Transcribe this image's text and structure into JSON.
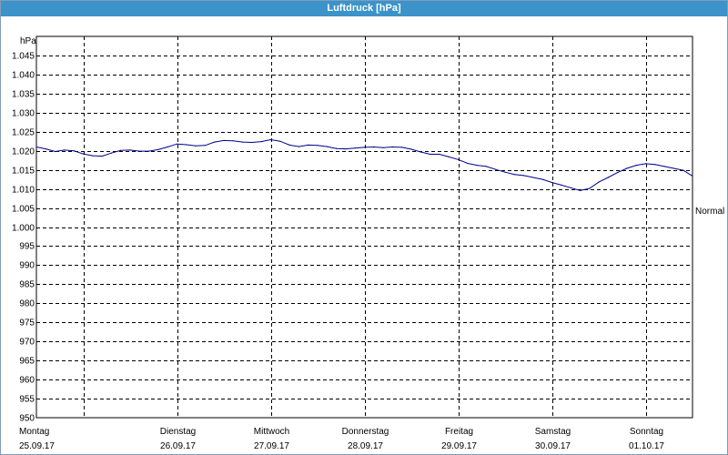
{
  "window": {
    "title": "Luftdruck [hPa]"
  },
  "chart_data": {
    "type": "line",
    "title": "Luftdruck [hPa]",
    "ylabel": "hPa",
    "xlabel": "",
    "ylim": [
      950,
      1050
    ],
    "xlim": [
      0,
      7
    ],
    "grid": true,
    "y_ticks": [
      950,
      955,
      960,
      965,
      970,
      975,
      980,
      985,
      990,
      995,
      1000,
      1005,
      1010,
      1015,
      1020,
      1025,
      1030,
      1035,
      1040,
      1045
    ],
    "y_tick_labels": [
      "950",
      "955",
      "960",
      "965",
      "970",
      "975",
      "980",
      "985",
      "990",
      "995",
      "1.000",
      "1.005",
      "1.010",
      "1.015",
      "1.020",
      "1.025",
      "1.030",
      "1.035",
      "1.040",
      "1.045"
    ],
    "x_ticks": [
      {
        "day": "Montag",
        "date": "25.09.17"
      },
      {
        "day": "Dienstag",
        "date": "26.09.17"
      },
      {
        "day": "Mittwoch",
        "date": "27.09.17"
      },
      {
        "day": "Donnerstag",
        "date": "28.09.17"
      },
      {
        "day": "Freitag",
        "date": "29.09.17"
      },
      {
        "day": "Samstag",
        "date": "30.09.17"
      },
      {
        "day": "Sonntag",
        "date": "01.10.17"
      }
    ],
    "reference_line": {
      "label": "Normal",
      "value": 1005
    },
    "series": [
      {
        "color": "#00008b",
        "points": [
          [
            0.0,
            1021.0
          ],
          [
            0.1,
            1020.5
          ],
          [
            0.2,
            1019.8
          ],
          [
            0.3,
            1020.2
          ],
          [
            0.4,
            1020.0
          ],
          [
            0.5,
            1019.2
          ],
          [
            0.6,
            1018.7
          ],
          [
            0.7,
            1018.6
          ],
          [
            0.8,
            1019.4
          ],
          [
            0.9,
            1020.1
          ],
          [
            1.0,
            1020.2
          ],
          [
            1.1,
            1019.9
          ],
          [
            1.2,
            1019.9
          ],
          [
            1.3,
            1020.3
          ],
          [
            1.4,
            1021.0
          ],
          [
            1.5,
            1021.8
          ],
          [
            1.6,
            1021.6
          ],
          [
            1.7,
            1021.3
          ],
          [
            1.8,
            1021.4
          ],
          [
            1.9,
            1022.3
          ],
          [
            2.0,
            1022.7
          ],
          [
            2.1,
            1022.6
          ],
          [
            2.2,
            1022.3
          ],
          [
            2.3,
            1022.2
          ],
          [
            2.4,
            1022.4
          ],
          [
            2.5,
            1022.9
          ],
          [
            2.6,
            1022.5
          ],
          [
            2.7,
            1021.5
          ],
          [
            2.8,
            1021.1
          ],
          [
            2.9,
            1021.5
          ],
          [
            3.0,
            1021.4
          ],
          [
            3.1,
            1021.1
          ],
          [
            3.2,
            1020.6
          ],
          [
            3.3,
            1020.5
          ],
          [
            3.4,
            1020.7
          ],
          [
            3.5,
            1020.9
          ],
          [
            3.6,
            1021.0
          ],
          [
            3.7,
            1020.8
          ],
          [
            3.8,
            1021.0
          ],
          [
            3.9,
            1020.9
          ],
          [
            4.0,
            1020.4
          ],
          [
            4.1,
            1019.7
          ],
          [
            4.2,
            1019.1
          ],
          [
            4.3,
            1019.1
          ],
          [
            4.4,
            1018.4
          ],
          [
            4.5,
            1017.7
          ],
          [
            4.6,
            1016.7
          ],
          [
            4.7,
            1016.2
          ],
          [
            4.8,
            1015.9
          ],
          [
            4.9,
            1015.1
          ],
          [
            5.0,
            1014.4
          ],
          [
            5.1,
            1013.8
          ],
          [
            5.2,
            1013.5
          ],
          [
            5.3,
            1013.0
          ],
          [
            5.4,
            1012.5
          ],
          [
            5.5,
            1011.7
          ],
          [
            5.6,
            1011.0
          ],
          [
            5.7,
            1010.3
          ],
          [
            5.8,
            1009.6
          ],
          [
            5.9,
            1010.1
          ],
          [
            6.0,
            1011.8
          ],
          [
            6.1,
            1013.0
          ],
          [
            6.2,
            1014.3
          ],
          [
            6.3,
            1015.4
          ],
          [
            6.4,
            1016.2
          ],
          [
            6.5,
            1016.6
          ],
          [
            6.6,
            1016.4
          ],
          [
            6.7,
            1015.9
          ],
          [
            6.8,
            1015.4
          ],
          [
            6.9,
            1014.9
          ],
          [
            7.0,
            1013.4
          ]
        ]
      }
    ]
  }
}
